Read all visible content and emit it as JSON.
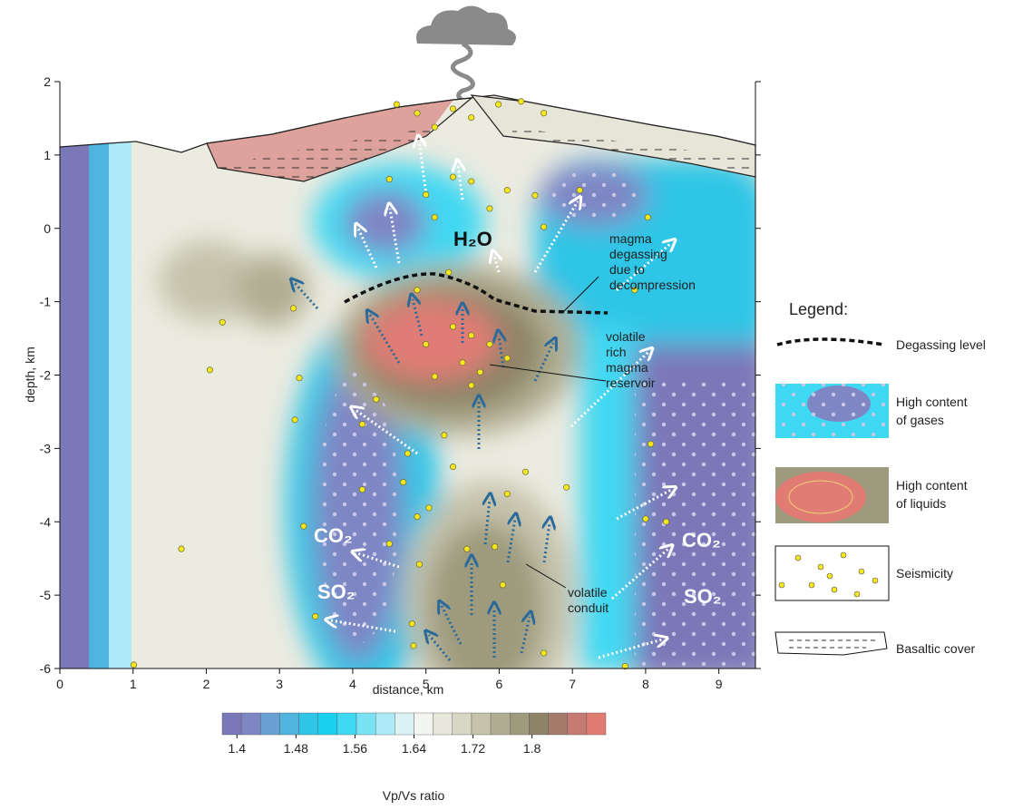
{
  "chart_data": {
    "type": "section",
    "xlabel": "distance, km",
    "ylabel": "depth, km",
    "xlim": [
      0,
      9.5
    ],
    "xticks": [
      0,
      1,
      2,
      3,
      4,
      5,
      6,
      7,
      8,
      9
    ],
    "ylim": [
      -6,
      2
    ],
    "yticks": [
      -6,
      -5,
      -4,
      -3,
      -2,
      -1,
      0,
      1,
      2
    ],
    "points": {
      "color": "#f5e61e",
      "x": [
        4.6,
        4.88,
        5.12,
        5.37,
        5.62,
        5.99,
        6.3,
        6.61,
        4.5,
        5.0,
        5.37,
        5.62,
        5.87,
        6.11,
        5.12,
        6.49,
        7.1,
        8.03,
        5.31,
        4.88,
        5.37,
        5.62,
        5.87,
        5.0,
        5.5,
        5.74,
        6.11,
        5.12,
        5.62,
        5.25,
        4.75,
        5.37,
        6.36,
        6.11,
        6.92,
        5.04,
        4.32,
        2.22,
        2.05,
        3.27,
        3.21,
        4.13,
        4.13,
        4.69,
        4.88,
        5.56,
        5.94,
        6.05,
        4.91,
        4.5,
        3.33,
        8.0,
        8.28,
        8.07,
        1.66,
        3.49,
        4.81,
        4.83,
        6.61,
        7.72,
        1.01,
        6.61,
        3.19,
        7.85
      ],
      "y": [
        1.69,
        1.57,
        1.38,
        1.63,
        1.51,
        1.69,
        1.73,
        1.57,
        0.67,
        0.46,
        0.7,
        0.64,
        0.27,
        0.52,
        0.15,
        0.45,
        0.52,
        0.15,
        -0.6,
        -0.84,
        -1.34,
        -1.46,
        -1.58,
        -1.58,
        -1.83,
        -1.96,
        -1.77,
        -2.02,
        -2.14,
        -2.82,
        -3.07,
        -3.25,
        -3.32,
        -3.62,
        -3.53,
        -3.81,
        -2.33,
        -1.28,
        -1.93,
        -2.04,
        -2.61,
        -2.67,
        -3.56,
        -3.46,
        -3.93,
        -4.37,
        -4.34,
        -4.86,
        -4.58,
        -4.3,
        -4.06,
        -3.96,
        -4.0,
        -2.94,
        -4.37,
        -5.29,
        -5.39,
        -5.69,
        -5.79,
        -5.97,
        -5.95,
        0.02,
        -1.09,
        -0.84
      ]
    },
    "colorbar": {
      "label": "Vp/Vs ratio",
      "lim": [
        1.38,
        1.9
      ],
      "ticks": [
        1.4,
        1.48,
        1.56,
        1.64,
        1.72,
        1.8
      ],
      "colors": [
        "#7b78b8",
        "#7f86c4",
        "#6a9fd4",
        "#4fb4de",
        "#2fc5e6",
        "#1ad0ef",
        "#3fd8f2",
        "#79e2f5",
        "#aeeaf7",
        "#dcf3f6",
        "#f3f5f0",
        "#e8e7dc",
        "#d8d6c4",
        "#c5c3ab",
        "#b0ae92",
        "#9e9a7d",
        "#8e8468",
        "#a47a6a",
        "#c57a72",
        "#e07c74"
      ]
    },
    "annotations": {
      "h2o": "H₂O",
      "co2": "CO₂",
      "so2": "SO₂",
      "degassing": [
        "magma",
        "degassing",
        "due to",
        "decompression"
      ],
      "reservoir": [
        "volatile",
        "rich",
        "magma",
        "reservoir"
      ],
      "conduit": [
        "volatile",
        "conduit"
      ]
    },
    "legend": {
      "title": "Legend:",
      "degassing": "Degassing level",
      "gases": [
        "High content",
        "of gases"
      ],
      "liquids": [
        "High content",
        "of liquids"
      ],
      "seismicity": "Seismicity",
      "basalt": "Basaltic cover"
    }
  }
}
